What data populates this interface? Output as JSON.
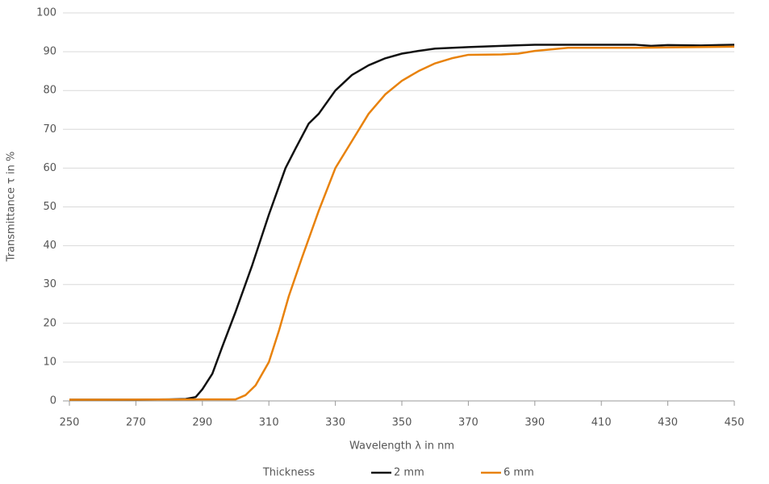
{
  "chart_data": {
    "type": "line",
    "x_label": "Wavelength λ in nm",
    "y_label": "Transmittance τ in %",
    "legend_title": "Thickness",
    "xlim": [
      250,
      450
    ],
    "xticks": [
      250,
      270,
      290,
      310,
      330,
      350,
      370,
      390,
      410,
      430,
      450
    ],
    "ylim": [
      0,
      100
    ],
    "yticks": [
      0,
      10,
      20,
      30,
      40,
      50,
      60,
      70,
      80,
      90,
      100
    ],
    "grid": true,
    "legend": "bottom",
    "series": [
      {
        "name": "2 mm",
        "color": "#111111",
        "x": [
          250,
          260,
          270,
          280,
          285,
          288,
          290,
          293,
          296,
          300,
          305,
          310,
          315,
          318,
          322,
          325,
          330,
          335,
          340,
          345,
          350,
          355,
          360,
          370,
          380,
          390,
          400,
          420,
          425,
          430,
          440,
          450
        ],
        "values": [
          0.3,
          0.3,
          0.3,
          0.4,
          0.5,
          1,
          3,
          7,
          14,
          23,
          35,
          48,
          60,
          65,
          71.5,
          74,
          80,
          84,
          86.5,
          88.3,
          89.5,
          90.2,
          90.8,
          91.2,
          91.5,
          91.8,
          91.8,
          91.8,
          91.5,
          91.7,
          91.6,
          91.8
        ]
      },
      {
        "name": "6 mm",
        "color": "#e8820c",
        "x": [
          250,
          290,
          300,
          303,
          306,
          310,
          313,
          316,
          320,
          325,
          330,
          335,
          340,
          345,
          350,
          355,
          360,
          365,
          370,
          380,
          385,
          390,
          400,
          420,
          440,
          450
        ],
        "values": [
          0.3,
          0.4,
          0.4,
          1.5,
          4,
          10,
          18,
          27,
          37,
          49,
          60,
          67,
          74,
          79,
          82.5,
          85,
          87,
          88.3,
          89.2,
          89.3,
          89.5,
          90.2,
          91,
          91,
          91.2,
          91.3
        ]
      }
    ]
  }
}
